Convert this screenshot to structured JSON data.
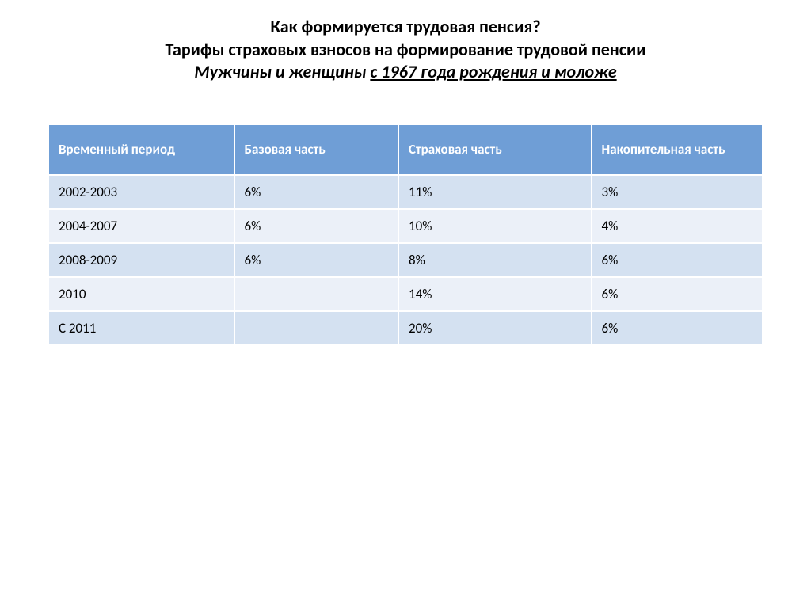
{
  "title": {
    "line1": "Как формируется трудовая пенсия?",
    "line2": "Тарифы страховых взносов на формирование трудовой пенсии",
    "subtitle_prefix": "Мужчины и женщины ",
    "subtitle_underlined": "с 1967 года рождения и моложе"
  },
  "table": {
    "type": "table",
    "header_bg": "#6f9ed6",
    "header_fg": "#ffffff",
    "row_dark_bg": "#d4e1f1",
    "row_light_bg": "#ebf0f8",
    "border_color": "#ffffff",
    "font_size": 17,
    "columns": [
      {
        "label": "Временный период",
        "width_pct": 26
      },
      {
        "label": "Базовая часть",
        "width_pct": 23
      },
      {
        "label": "Страховая часть",
        "width_pct": 27
      },
      {
        "label": "Накопительная часть",
        "width_pct": 24
      }
    ],
    "rows": [
      {
        "period": "2002-2003",
        "base": "6%",
        "insurance": "11%",
        "accum": "3%"
      },
      {
        "period": "2004-2007",
        "base": "6%",
        "insurance": "10%",
        "accum": "4%"
      },
      {
        "period": "2008-2009",
        "base": "6%",
        "insurance": "8%",
        "accum": "6%"
      },
      {
        "period": "2010",
        "base": "",
        "insurance": "14%",
        "accum": "6%"
      },
      {
        "period": "С 2011",
        "base": "",
        "insurance": "20%",
        "accum": "6%"
      }
    ]
  }
}
